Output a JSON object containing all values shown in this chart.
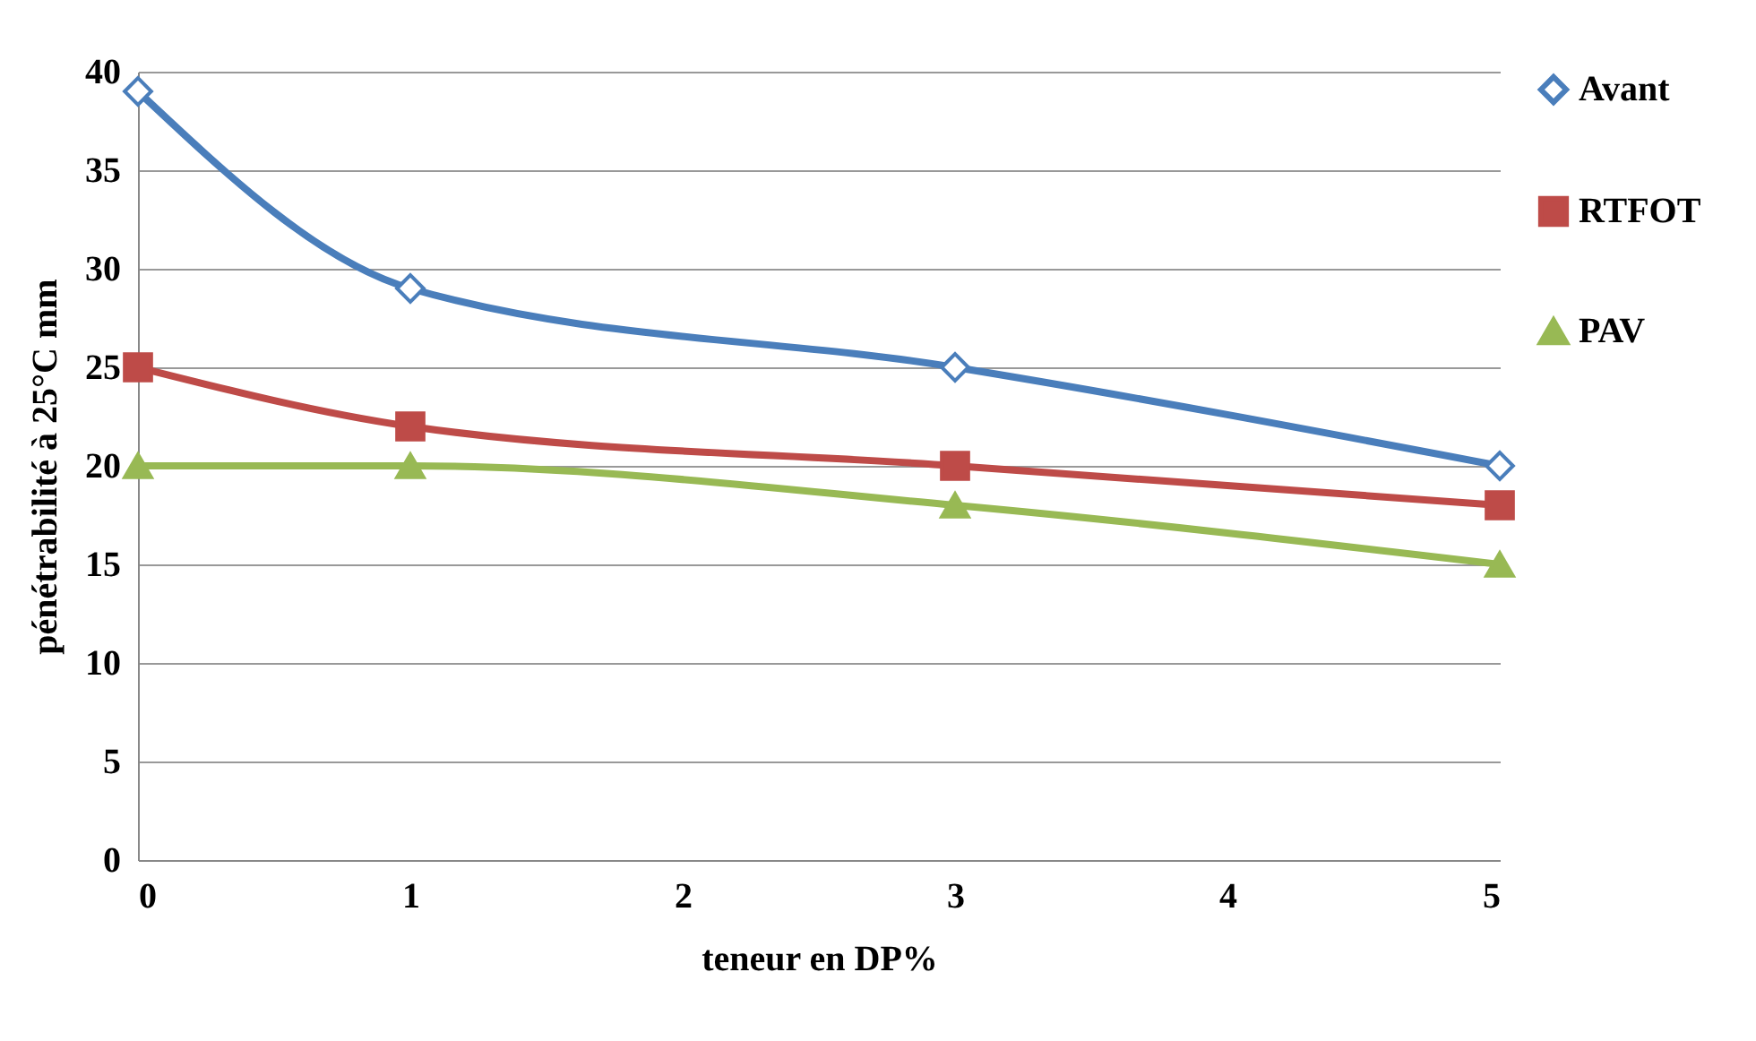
{
  "chart_data": {
    "type": "line",
    "xlabel": "teneur en DP%",
    "ylabel": "pénétrabilité  à 25°C  mm",
    "x": [
      0,
      1,
      3,
      5
    ],
    "series": [
      {
        "name": "Avant",
        "color": "#4a7ebb",
        "marker": "diamond",
        "values": [
          39,
          29,
          25,
          20
        ]
      },
      {
        "name": "RTFOT",
        "color": "#be4b48",
        "marker": "square",
        "values": [
          25,
          22,
          20,
          18
        ]
      },
      {
        "name": "PAV",
        "color": "#98b954",
        "marker": "triangle",
        "values": [
          20,
          20,
          18,
          15
        ]
      }
    ],
    "xlim": [
      0,
      5
    ],
    "xticks": [
      0,
      1,
      2,
      3,
      4,
      5
    ],
    "ylim": [
      0,
      40
    ],
    "yticks": [
      0,
      5,
      10,
      15,
      20,
      25,
      30,
      35,
      40
    ],
    "grid": "y",
    "legend": "right"
  }
}
